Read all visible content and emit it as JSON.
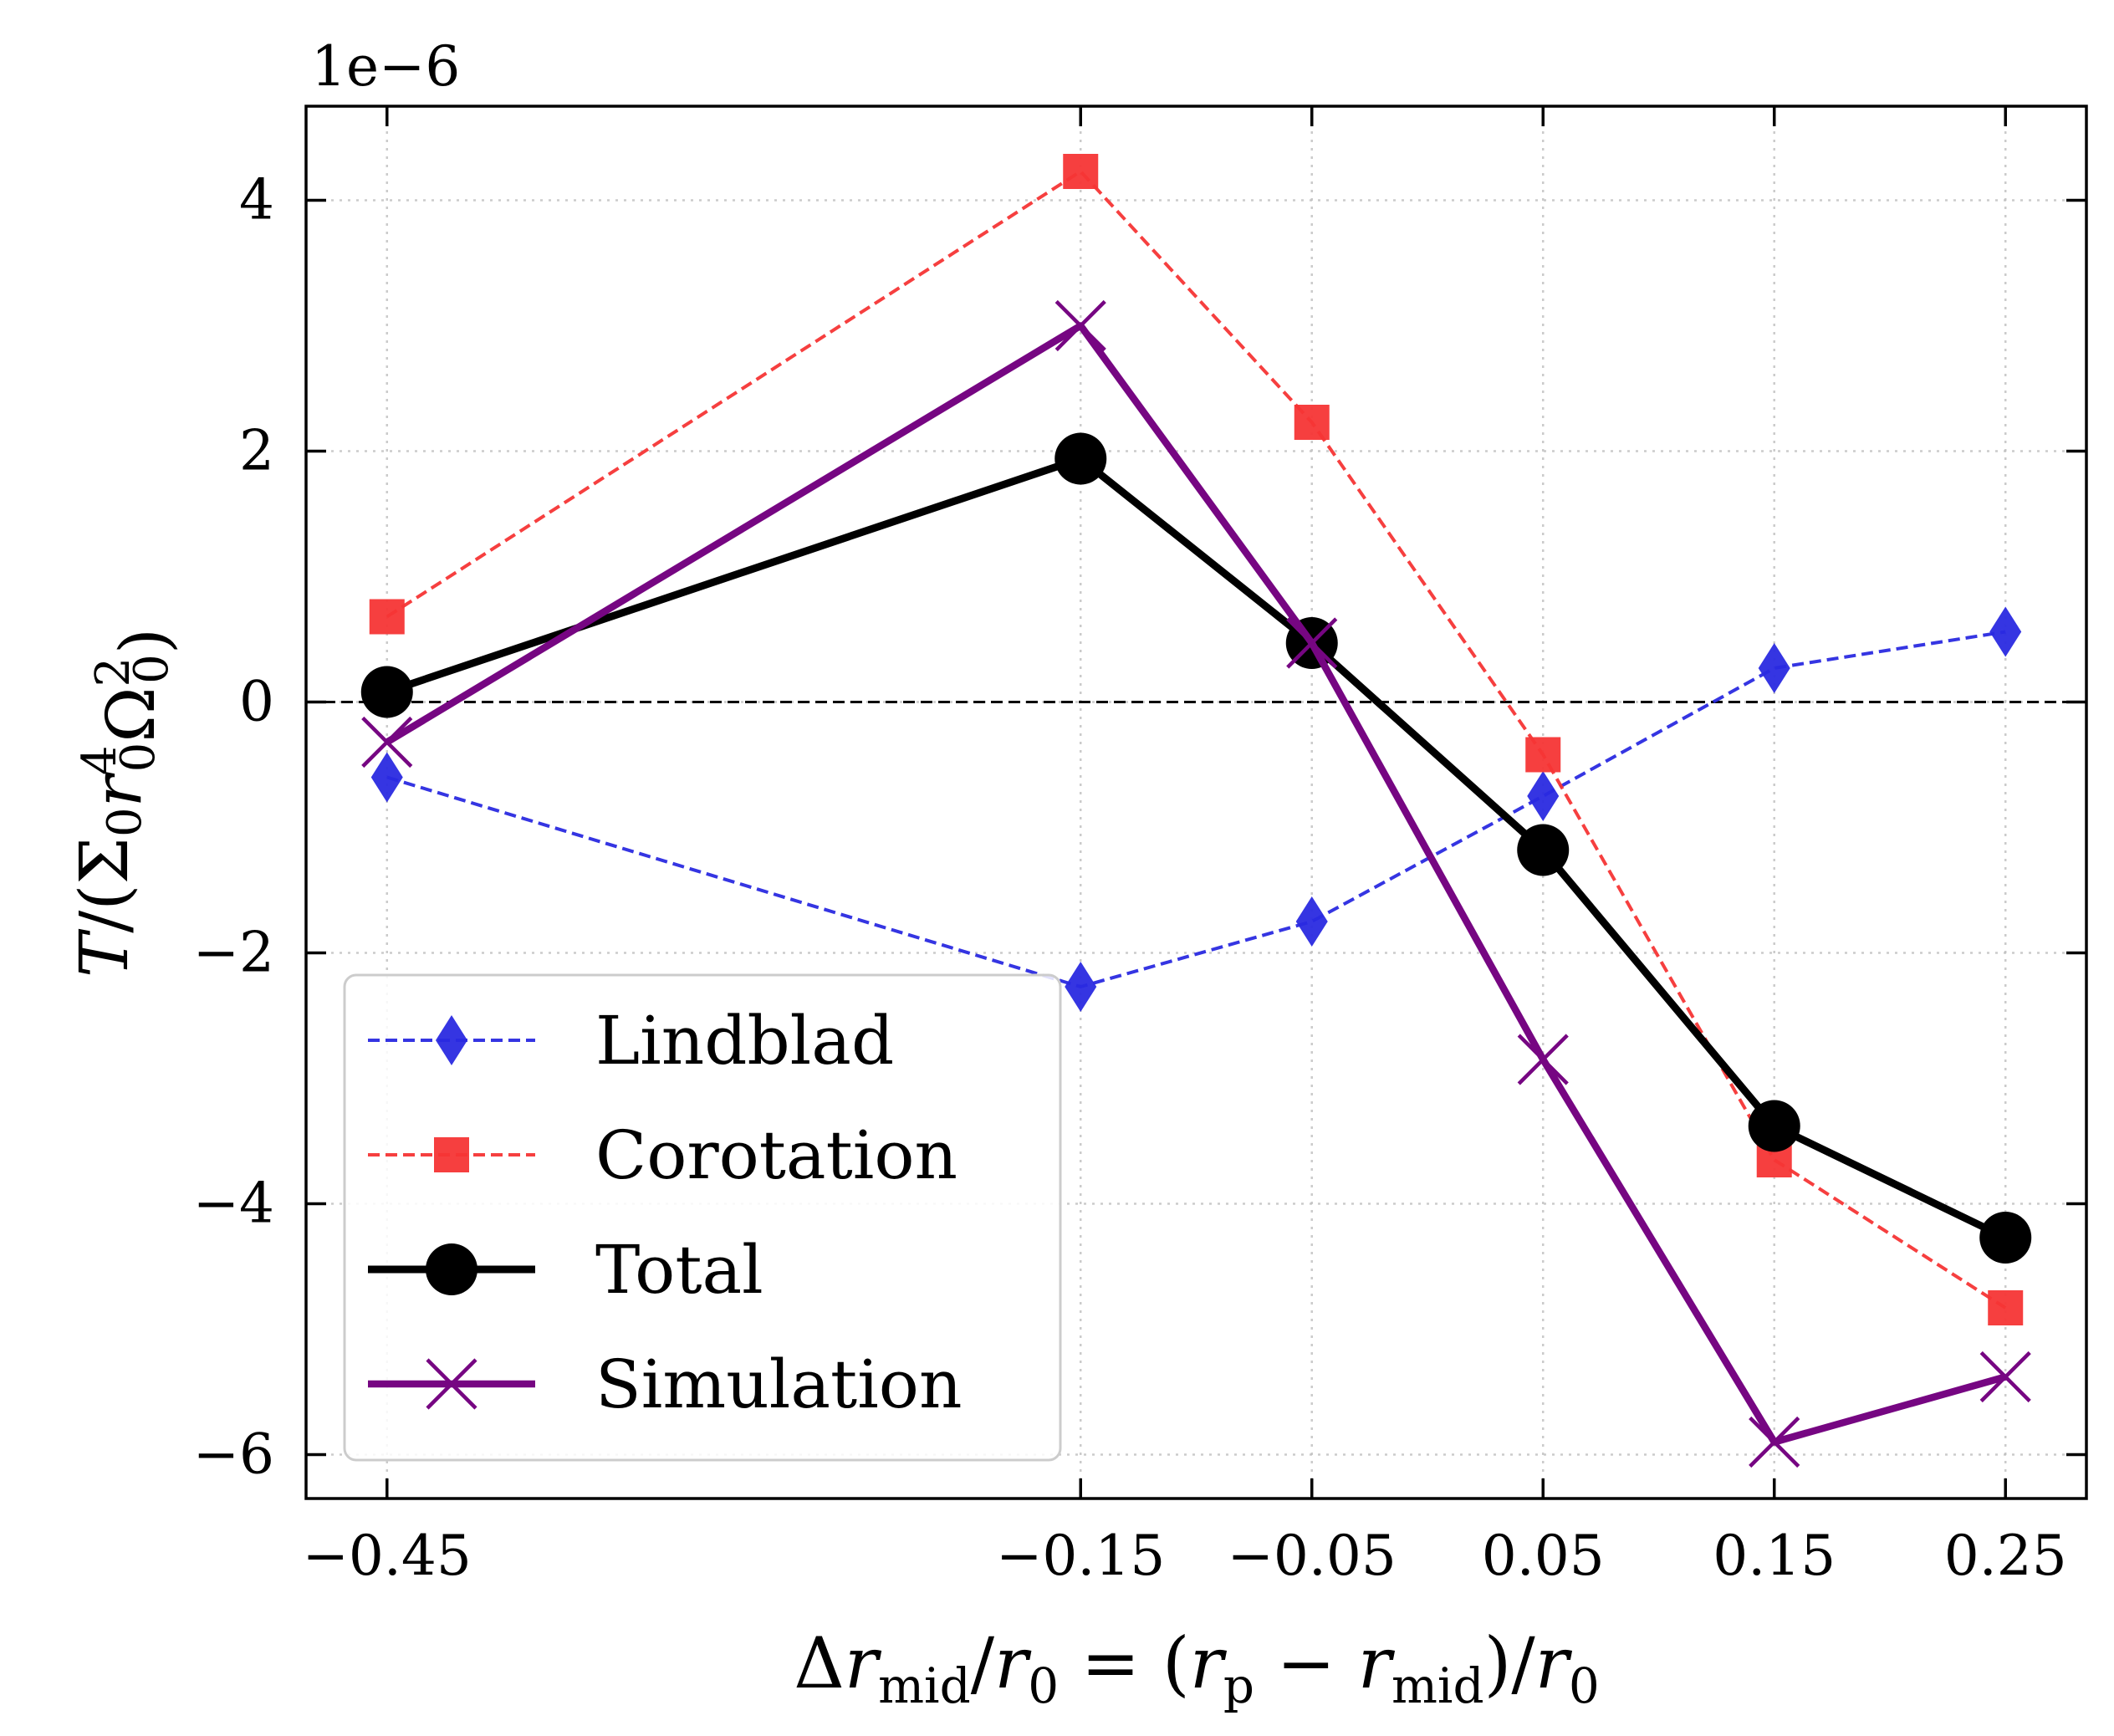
{
  "chart_data": {
    "type": "line",
    "title": "",
    "offset_text": "1e−6",
    "xlabel": "Δr_mid/r_0 = (r_p − r_mid)/r_0",
    "ylabel": "T/(Σ_0 r_0^4 Ω_0^2)",
    "x": [
      -0.45,
      -0.15,
      -0.05,
      0.05,
      0.15,
      0.25
    ],
    "x_tick_labels": [
      "−0.45",
      "−0.15",
      "−0.05",
      "0.05",
      "0.15",
      "0.25"
    ],
    "y_ticks": [
      4,
      2,
      0,
      -2,
      -4,
      -6
    ],
    "y_tick_labels": [
      "4",
      "2",
      "0",
      "−2",
      "−4",
      "−6"
    ],
    "xlim": [
      -0.485,
      0.285
    ],
    "ylim": [
      -6.35,
      4.75
    ],
    "grid": true,
    "hline": 0,
    "legend_position": "lower-left",
    "series": [
      {
        "name": "Lindblad",
        "values": [
          -0.6,
          -2.27,
          -1.75,
          -0.75,
          0.27,
          0.56
        ],
        "color": "#2a2ae0",
        "linestyle": "dashed",
        "marker": "diamond"
      },
      {
        "name": "Corotation",
        "values": [
          0.68,
          4.23,
          2.23,
          -0.42,
          -3.65,
          -4.83
        ],
        "color": "#f53535",
        "linestyle": "dashed",
        "marker": "square"
      },
      {
        "name": "Total",
        "values": [
          0.08,
          1.94,
          0.47,
          -1.18,
          -3.38,
          -4.27
        ],
        "color": "#000000",
        "linestyle": "solid",
        "marker": "circle"
      },
      {
        "name": "Simulation",
        "values": [
          -0.32,
          3.0,
          0.47,
          -2.85,
          -5.9,
          -5.38
        ],
        "color": "#760682",
        "linestyle": "solid",
        "marker": "x"
      }
    ]
  }
}
